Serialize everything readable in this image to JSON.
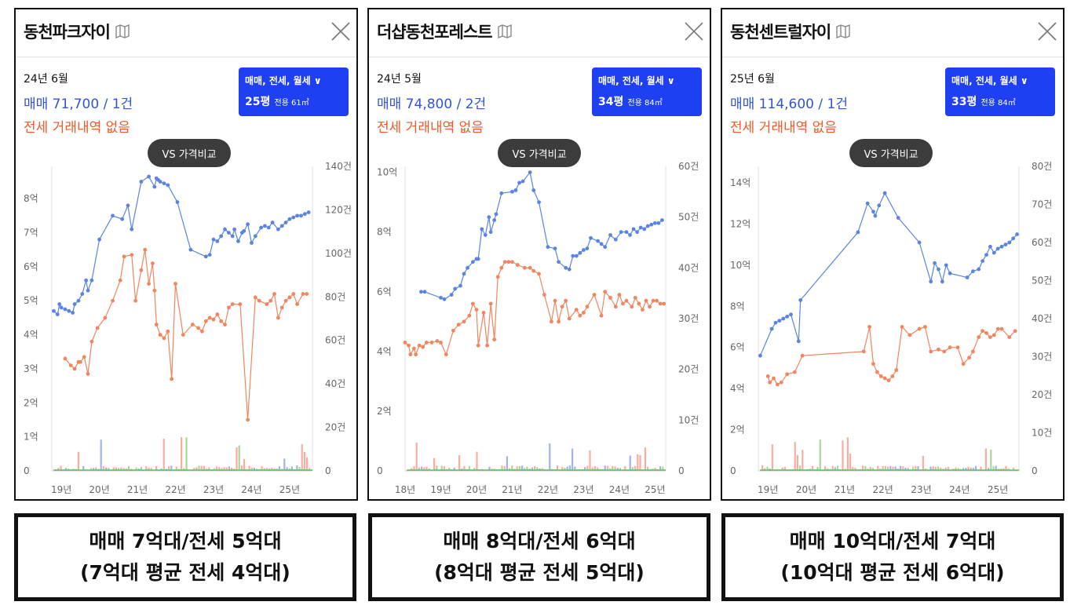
{
  "panels": [
    {
      "title": "동천파크자이",
      "date": "24년 6월",
      "sale": "매매 71,700 / 1건",
      "jeonse": "전세 거래내역 없음",
      "dropdown": {
        "types": "매매, 전세, 월세 ∨",
        "pyeong": "25평",
        "area": "전용 61㎡"
      },
      "vs_button": "VS 가격비교",
      "chart_data": {
        "type": "line",
        "x_tick_labels": [
          "19년",
          "20년",
          "21년",
          "22년",
          "23년",
          "24년",
          "25년"
        ],
        "x_range": [
          2018.75,
          2025.6
        ],
        "y_left_tick_labels": [
          "0",
          "1억",
          "2억",
          "3억",
          "4억",
          "5억",
          "6억",
          "7억",
          "8억"
        ],
        "y_left_range": [
          0,
          8.95
        ],
        "y_right_tick_labels": [
          "0",
          "20건",
          "40건",
          "60건",
          "80건",
          "100건",
          "120건",
          "140건"
        ],
        "y_right_range": [
          0,
          140
        ],
        "series": [
          {
            "color": "#5b84e0",
            "x": [
              2018.8,
              2018.9,
              2018.95,
              2019.0,
              2019.1,
              2019.2,
              2019.3,
              2019.35,
              2019.45,
              2019.55,
              2019.65,
              2019.7,
              2019.8,
              2020.0,
              2020.35,
              2020.6,
              2020.75,
              2020.85,
              2021.1,
              2021.3,
              2021.45,
              2021.5,
              2021.55,
              2021.6,
              2021.7,
              2021.8,
              2022.05,
              2022.4,
              2022.8,
              2022.9,
              2023.0,
              2023.1,
              2023.2,
              2023.3,
              2023.4,
              2023.5,
              2023.55,
              2023.65,
              2023.75,
              2023.8,
              2023.9,
              2024.0,
              2024.1,
              2024.25,
              2024.35,
              2024.45,
              2024.55,
              2024.7,
              2024.8,
              2024.9,
              2025.0,
              2025.1,
              2025.2,
              2025.3,
              2025.4,
              2025.5
            ],
            "y": [
              4.7,
              4.6,
              4.9,
              4.8,
              4.75,
              4.7,
              4.65,
              4.9,
              5.0,
              5.2,
              5.6,
              5.3,
              5.6,
              6.8,
              7.5,
              7.4,
              7.8,
              7.1,
              8.5,
              8.65,
              8.35,
              8.6,
              8.55,
              8.5,
              8.45,
              8.4,
              7.9,
              6.5,
              6.3,
              6.35,
              6.8,
              6.75,
              6.9,
              7.1,
              7.0,
              6.9,
              7.1,
              6.75,
              7.0,
              7.05,
              7.25,
              6.7,
              6.9,
              7.15,
              7.2,
              7.15,
              7.3,
              7.1,
              7.2,
              7.3,
              7.4,
              7.45,
              7.5,
              7.5,
              7.55,
              7.6
            ]
          },
          {
            "color": "#f0855f",
            "x": [
              2019.1,
              2019.25,
              2019.35,
              2019.45,
              2019.5,
              2019.6,
              2019.7,
              2019.8,
              2019.95,
              2020.15,
              2020.35,
              2020.55,
              2020.65,
              2020.85,
              2020.95,
              2021.1,
              2021.2,
              2021.3,
              2021.4,
              2021.45,
              2021.5,
              2021.6,
              2021.7,
              2021.8,
              2021.9,
              2022.0,
              2022.2,
              2022.45,
              2022.6,
              2022.7,
              2022.8,
              2022.9,
              2023.0,
              2023.1,
              2023.2,
              2023.3,
              2023.4,
              2023.5,
              2023.7,
              2023.9,
              2024.1,
              2024.2,
              2024.4,
              2024.5,
              2024.6,
              2024.7,
              2024.8,
              2024.9,
              2025.0,
              2025.1,
              2025.2,
              2025.35,
              2025.45
            ],
            "y": [
              3.3,
              3.1,
              3.0,
              3.2,
              3.2,
              3.35,
              2.85,
              3.8,
              4.2,
              4.5,
              5.0,
              5.6,
              6.3,
              6.35,
              5.0,
              5.9,
              6.5,
              5.5,
              6.1,
              5.3,
              4.3,
              4.0,
              3.9,
              4.1,
              2.7,
              5.5,
              4.0,
              4.3,
              4.2,
              4.1,
              4.4,
              4.5,
              4.45,
              4.6,
              4.4,
              4.3,
              4.8,
              4.9,
              4.9,
              1.5,
              5.1,
              5.0,
              4.9,
              5.0,
              5.2,
              4.5,
              4.8,
              5.0,
              5.1,
              5.2,
              4.9,
              5.2,
              5.2
            ]
          }
        ]
      },
      "caption": [
        "매매 7억대/전세 5억대",
        "(7억대 평균 전세 4억대)"
      ]
    },
    {
      "title": "더샵동천포레스트",
      "date": "24년 5월",
      "sale": "매매 74,800 / 2건",
      "jeonse": "전세 거래내역 없음",
      "dropdown": {
        "types": "매매, 전세, 월세 ∨",
        "pyeong": "34평",
        "area": "전용 84㎡"
      },
      "vs_button": "VS 가격비교",
      "chart_data": {
        "type": "line",
        "x_tick_labels": [
          "18년",
          "19년",
          "20년",
          "21년",
          "22년",
          "23년",
          "24년",
          "25년"
        ],
        "x_range": [
          2018.0,
          2025.3
        ],
        "y_left_tick_labels": [
          "0",
          "2억",
          "4억",
          "6억",
          "8억",
          "10억"
        ],
        "y_left_range": [
          0,
          10.2
        ],
        "y_right_tick_labels": [
          "0",
          "10건",
          "20건",
          "30건",
          "40건",
          "50건",
          "60건"
        ],
        "y_right_range": [
          0,
          60
        ],
        "series": [
          {
            "color": "#5b84e0",
            "x": [
              2018.45,
              2018.55,
              2019.0,
              2019.1,
              2019.3,
              2019.4,
              2019.55,
              2019.65,
              2019.75,
              2019.9,
              2020.0,
              2020.05,
              2020.15,
              2020.25,
              2020.35,
              2020.4,
              2020.5,
              2020.55,
              2020.7,
              2021.0,
              2021.1,
              2021.2,
              2021.3,
              2021.5,
              2021.6,
              2021.75,
              2022.0,
              2022.2,
              2022.3,
              2022.5,
              2022.6,
              2022.7,
              2022.8,
              2022.9,
              2023.0,
              2023.1,
              2023.2,
              2023.4,
              2023.5,
              2023.6,
              2023.75,
              2023.9,
              2024.05,
              2024.2,
              2024.3,
              2024.4,
              2024.5,
              2024.6,
              2024.7,
              2024.8,
              2024.9,
              2025.0,
              2025.1,
              2025.2
            ],
            "y": [
              6.0,
              6.0,
              5.8,
              5.75,
              5.9,
              6.1,
              6.2,
              6.6,
              6.8,
              7.0,
              7.1,
              7.1,
              8.1,
              7.9,
              8.5,
              8.0,
              8.4,
              8.6,
              9.3,
              9.35,
              9.4,
              9.65,
              9.7,
              10.0,
              9.4,
              9.0,
              7.5,
              7.45,
              7.0,
              6.8,
              6.75,
              7.2,
              7.2,
              7.3,
              7.4,
              7.45,
              7.8,
              7.7,
              7.6,
              7.5,
              7.9,
              7.75,
              8.0,
              8.0,
              7.9,
              8.1,
              8.0,
              8.15,
              8.1,
              8.2,
              8.25,
              8.3,
              8.3,
              8.4
            ]
          },
          {
            "color": "#f0855f",
            "x": [
              2018.0,
              2018.1,
              2018.15,
              2018.25,
              2018.3,
              2018.4,
              2018.5,
              2018.6,
              2018.75,
              2018.9,
              2019.0,
              2019.15,
              2019.35,
              2019.5,
              2019.65,
              2019.8,
              2019.9,
              2020.0,
              2020.05,
              2020.2,
              2020.3,
              2020.4,
              2020.5,
              2020.6,
              2020.7,
              2020.8,
              2020.9,
              2021.0,
              2021.15,
              2021.35,
              2021.5,
              2021.6,
              2021.75,
              2021.9,
              2022.1,
              2022.2,
              2022.3,
              2022.4,
              2022.5,
              2022.6,
              2022.8,
              2022.9,
              2023.0,
              2023.1,
              2023.3,
              2023.5,
              2023.6,
              2023.75,
              2023.9,
              2024.0,
              2024.1,
              2024.2,
              2024.35,
              2024.45,
              2024.55,
              2024.65,
              2024.75,
              2024.85,
              2024.95,
              2025.05,
              2025.15,
              2025.25
            ],
            "y": [
              4.3,
              4.2,
              3.9,
              4.1,
              3.9,
              4.2,
              4.15,
              4.3,
              4.3,
              4.35,
              4.3,
              3.9,
              4.7,
              4.9,
              5.0,
              5.2,
              5.6,
              5.4,
              4.2,
              5.3,
              4.2,
              5.6,
              4.4,
              6.5,
              6.8,
              7.0,
              7.0,
              7.0,
              6.9,
              6.8,
              6.8,
              6.7,
              6.6,
              5.9,
              5.0,
              5.7,
              5.0,
              5.5,
              5.7,
              5.1,
              5.4,
              5.2,
              5.3,
              5.5,
              5.9,
              5.2,
              6.0,
              5.8,
              5.5,
              5.9,
              5.6,
              5.7,
              5.5,
              5.8,
              5.6,
              5.4,
              5.7,
              5.5,
              5.7,
              5.7,
              5.6,
              5.6
            ]
          }
        ]
      },
      "caption": [
        "매매 8억대/전세 6억대",
        "(8억대 평균 전세 5억대)"
      ]
    },
    {
      "title": "동천센트럴자이",
      "date": "25년 6월",
      "sale": "매매 114,600 / 1건",
      "jeonse": "전세 거래내역 없음",
      "dropdown": {
        "types": "매매, 전세, 월세 ∨",
        "pyeong": "33평",
        "area": "전용 84㎡"
      },
      "vs_button": "VS 가격비교",
      "chart_data": {
        "type": "line",
        "x_tick_labels": [
          "19년",
          "20년",
          "21년",
          "22년",
          "23년",
          "24년",
          "25년"
        ],
        "x_range": [
          2018.75,
          2025.55
        ],
        "y_left_tick_labels": [
          "0",
          "2억",
          "4억",
          "6억",
          "8억",
          "10억",
          "12억",
          "14억"
        ],
        "y_left_range": [
          0,
          14.8
        ],
        "y_right_tick_labels": [
          "0",
          "10건",
          "20건",
          "30건",
          "40건",
          "50건",
          "60건",
          "70건",
          "80건"
        ],
        "y_right_range": [
          0,
          80
        ],
        "series": [
          {
            "color": "#5b84e0",
            "x": [
              2018.8,
              2019.1,
              2019.2,
              2019.3,
              2019.4,
              2019.5,
              2019.6,
              2019.8,
              2019.85,
              2021.35,
              2021.6,
              2021.75,
              2021.8,
              2021.9,
              2022.05,
              2022.4,
              2022.95,
              2023.25,
              2023.35,
              2023.45,
              2023.55,
              2023.65,
              2023.75,
              2024.2,
              2024.35,
              2024.5,
              2024.6,
              2024.7,
              2024.8,
              2024.9,
              2025.0,
              2025.1,
              2025.2,
              2025.3,
              2025.4,
              2025.5
            ],
            "y": [
              5.6,
              6.9,
              7.2,
              7.3,
              7.4,
              7.5,
              7.6,
              6.3,
              8.3,
              11.6,
              13.0,
              12.6,
              12.4,
              12.9,
              13.5,
              12.3,
              11.1,
              9.2,
              10.1,
              9.8,
              9.2,
              10.0,
              9.6,
              9.4,
              9.7,
              9.8,
              10.2,
              10.5,
              10.9,
              10.6,
              10.8,
              10.9,
              11.0,
              11.1,
              11.3,
              11.5
            ]
          },
          {
            "color": "#f0855f",
            "x": [
              2019.0,
              2019.05,
              2019.15,
              2019.25,
              2019.35,
              2019.5,
              2019.7,
              2019.9,
              2021.5,
              2021.65,
              2021.75,
              2021.85,
              2021.95,
              2022.05,
              2022.15,
              2022.25,
              2022.35,
              2022.5,
              2022.7,
              2022.95,
              2023.1,
              2023.25,
              2023.45,
              2023.6,
              2023.75,
              2023.95,
              2024.1,
              2024.25,
              2024.35,
              2024.5,
              2024.6,
              2024.7,
              2024.8,
              2024.9,
              2025.0,
              2025.1,
              2025.3,
              2025.45
            ],
            "y": [
              4.6,
              4.3,
              4.5,
              4.2,
              4.3,
              4.7,
              4.8,
              5.6,
              5.8,
              7.0,
              5.2,
              4.8,
              4.6,
              4.5,
              4.4,
              4.6,
              4.9,
              7.0,
              6.6,
              6.9,
              7.0,
              5.8,
              5.9,
              5.8,
              6.0,
              6.0,
              5.2,
              5.5,
              5.8,
              6.5,
              6.8,
              6.7,
              6.5,
              6.6,
              6.9,
              6.9,
              6.5,
              6.8
            ]
          }
        ]
      },
      "caption": [
        "매매 10억대/전세 7억대",
        "(10억대 평균 전세 6억대)"
      ]
    }
  ]
}
